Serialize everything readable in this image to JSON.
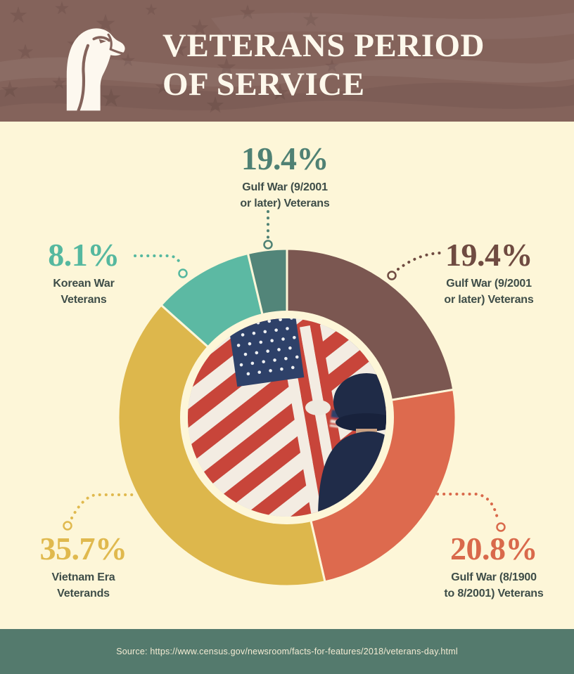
{
  "page": {
    "background_color": "#fdf6d8"
  },
  "header": {
    "title_line1": "VETERANS PERIOD",
    "title_line2": "OF SERVICE",
    "background_color": "#84635b",
    "icon": "eagle-icon"
  },
  "chart_data": {
    "type": "pie",
    "style": "donut",
    "title": "Veterans Period of Service",
    "center": "circular photo of american flags and uniformed veterans",
    "legend_position": "callout-labels",
    "segments": [
      {
        "name": "Gulf War (9/2001 or later) Veterans",
        "value": 19.4,
        "color": "#7b5751",
        "start_angle": 0,
        "end_angle": 80.5
      },
      {
        "name": "Gulf War (8/1900 to 8/2001) Veterans",
        "value": 20.8,
        "color": "#dd6a4e",
        "start_angle": 80.5,
        "end_angle": 167
      },
      {
        "name": "Vietnam Era Veterands",
        "value": 35.7,
        "color": "#ddb74c",
        "start_angle": 167,
        "end_angle": 311.8
      },
      {
        "name": "Korean War Veterans",
        "value": 8.1,
        "color": "#5cb9a3",
        "start_angle": 311.8,
        "end_angle": 346.6
      },
      {
        "name": "Gulf War (9/2001 or later) Veterans",
        "value": 19.4,
        "color": "#528579",
        "start_angle": 346.6,
        "end_angle": 360
      }
    ]
  },
  "labels": [
    {
      "pct": "19.4%",
      "line1": "Gulf War (9/2001",
      "line2": "or later) Veterans",
      "color": "#4f8174"
    },
    {
      "pct": "8.1%",
      "line1": "Korean War",
      "line2": "Veterans",
      "color": "#55b89f"
    },
    {
      "pct": "19.4%",
      "line1": "Gulf War (9/2001",
      "line2": "or later) Veterans",
      "color": "#6f4b41"
    },
    {
      "pct": "35.7%",
      "line1": "Vietnam Era",
      "line2": "Veterands",
      "color": "#e0b94e"
    },
    {
      "pct": "20.8%",
      "line1": "Gulf War (8/1900",
      "line2": "to 8/2001) Veterans",
      "color": "#d9694b"
    }
  ],
  "footer": {
    "source_text": "Source: https://www.census.gov/newsroom/facts-for-features/2018/veterans-day.html",
    "background_color": "#547a6d"
  }
}
